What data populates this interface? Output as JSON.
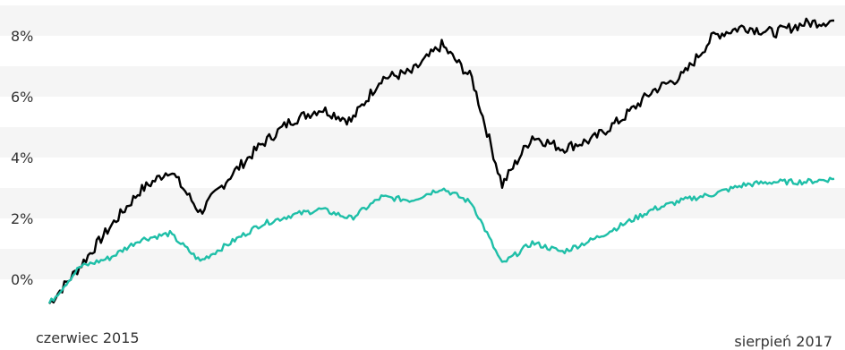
{
  "chart_data": {
    "type": "line",
    "title": "",
    "xlabel": "",
    "ylabel": "",
    "x_range_labels": {
      "start": "czerwiec 2015",
      "end": "sierpień 2017"
    },
    "x_range": [
      "2015-06",
      "2017-08"
    ],
    "ylim": [
      -1,
      9
    ],
    "y_ticks": [
      {
        "value": 0,
        "label": "0%"
      },
      {
        "value": 2,
        "label": "2%"
      },
      {
        "value": 4,
        "label": "4%"
      },
      {
        "value": 6,
        "label": "6%"
      },
      {
        "value": 8,
        "label": "8%"
      }
    ],
    "grid": "alternating horizontal bands",
    "legend": "none",
    "colors": {
      "series_black": "#000000",
      "series_teal": "#1fbfa8",
      "band": "#f5f5f5"
    },
    "x": [
      "2015-06",
      "2015-07",
      "2015-08",
      "2015-09",
      "2015-10",
      "2015-11",
      "2015-12",
      "2016-01",
      "2016-02",
      "2016-03",
      "2016-04",
      "2016-05",
      "2016-06",
      "2016-07",
      "2016-08",
      "2016-09",
      "2016-10",
      "2016-11",
      "2016-12",
      "2017-01",
      "2017-02",
      "2017-03",
      "2017-04",
      "2017-05",
      "2017-06",
      "2017-07",
      "2017-08"
    ],
    "series": [
      {
        "color": "#000000",
        "values": [
          -0.8,
          0.4,
          1.7,
          2.9,
          3.6,
          2.2,
          3.4,
          4.4,
          5.2,
          5.6,
          5.2,
          6.6,
          6.8,
          7.7,
          6.6,
          3.1,
          4.7,
          4.3,
          4.6,
          5.3,
          6.2,
          6.7,
          8.0,
          8.3,
          8.1,
          8.4,
          8.5
        ]
      },
      {
        "color": "#1fbfa8",
        "values": [
          -0.8,
          0.4,
          0.7,
          1.3,
          1.5,
          0.6,
          1.2,
          1.8,
          2.1,
          2.3,
          2.0,
          2.7,
          2.6,
          3.0,
          2.5,
          0.5,
          1.2,
          0.9,
          1.3,
          1.8,
          2.3,
          2.6,
          2.8,
          3.1,
          3.2,
          3.2,
          3.3
        ]
      }
    ]
  }
}
